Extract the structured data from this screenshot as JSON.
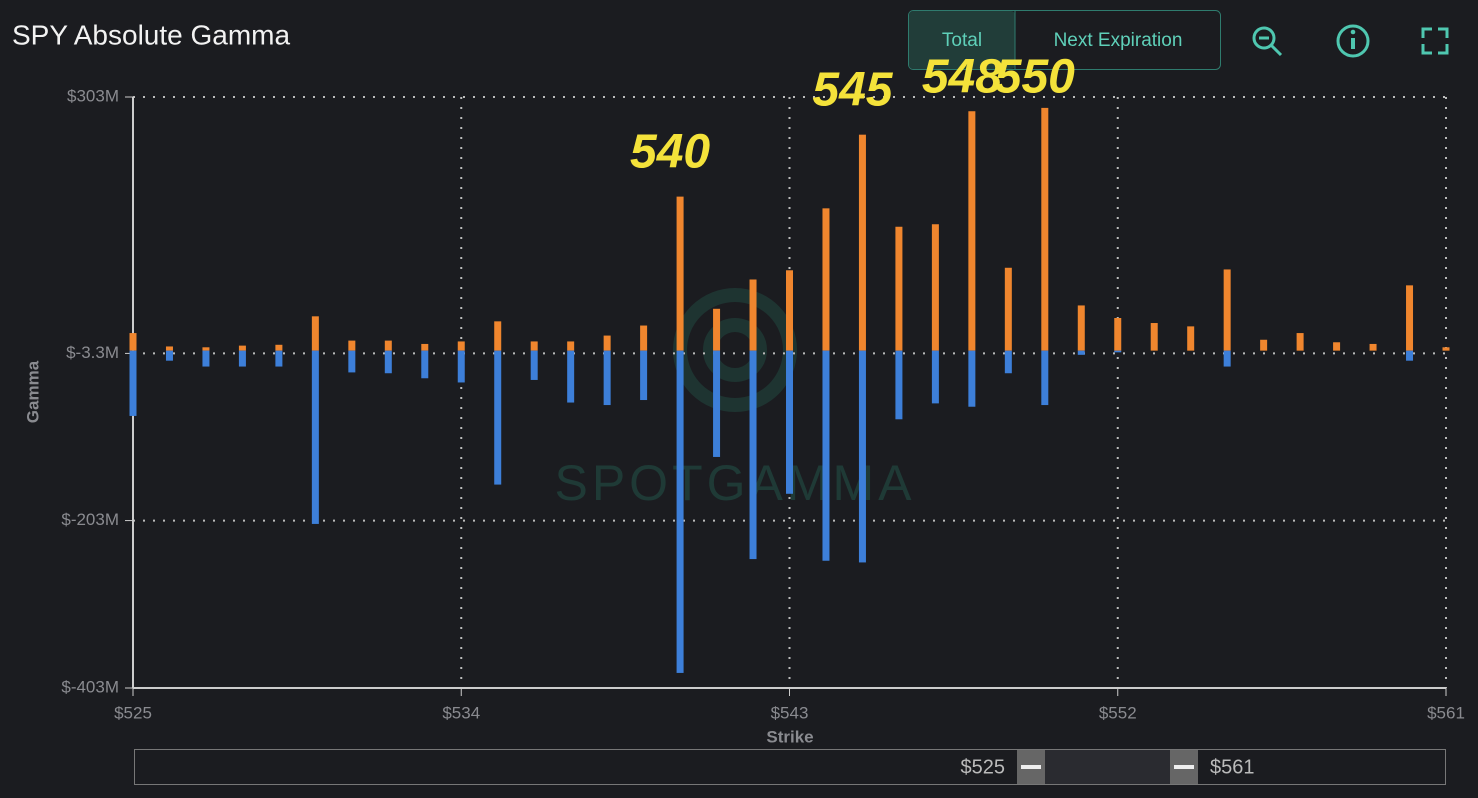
{
  "chart_data": {
    "type": "bar",
    "title": "SPY Absolute Gamma",
    "buttons": [
      "Total",
      "Next Expiration"
    ],
    "xlabel": "Strike",
    "ylabel": "Gamma",
    "watermark": "SPOTGAMMA",
    "range_labels": [
      "$525",
      "$561"
    ],
    "annotations": [
      "540",
      "545",
      "548",
      "550"
    ],
    "x": [
      525,
      526,
      527,
      528,
      529,
      530,
      531,
      532,
      533,
      534,
      535,
      536,
      537,
      538,
      539,
      540,
      541,
      542,
      543,
      544,
      545,
      546,
      547,
      548,
      549,
      550,
      551,
      552,
      553,
      554,
      555,
      556,
      557,
      558,
      559,
      560,
      561
    ],
    "series": [
      {
        "color": "#f0862e",
        "values": [
          21,
          5,
          4,
          6,
          7,
          41,
          12,
          12,
          8,
          11,
          35,
          11,
          11,
          18,
          30,
          184,
          50,
          85,
          96,
          170,
          258,
          148,
          151,
          286,
          99,
          290,
          54,
          39,
          33,
          29,
          97,
          13,
          21,
          10,
          8,
          78,
          4
        ]
      },
      {
        "color": "#3d7fd9",
        "values": [
          -78,
          -12,
          -19,
          -19,
          -19,
          -207,
          -26,
          -27,
          -33,
          -38,
          -160,
          -35,
          -62,
          -65,
          -59,
          -385,
          -127,
          -249,
          -171,
          -251,
          -253,
          -82,
          -63,
          -67,
          -27,
          -65,
          -5,
          -2,
          0,
          0,
          -19,
          0,
          0,
          0,
          0,
          -12,
          0
        ]
      }
    ],
    "xlim": [
      525,
      561
    ],
    "xticks": [
      {
        "value": 525,
        "label": "$525"
      },
      {
        "value": 534,
        "label": "$534"
      },
      {
        "value": 543,
        "label": "$543"
      },
      {
        "value": 552,
        "label": "$552"
      },
      {
        "value": 561,
        "label": "$561"
      }
    ],
    "ylim": [
      -403,
      303
    ],
    "yticks": [
      {
        "value": -403,
        "label": "$-403M"
      },
      {
        "value": -203,
        "label": "$-203M"
      },
      {
        "value": -3.3,
        "label": "$-3.3M"
      },
      {
        "value": 303,
        "label": "$303M"
      }
    ],
    "grid": true
  }
}
